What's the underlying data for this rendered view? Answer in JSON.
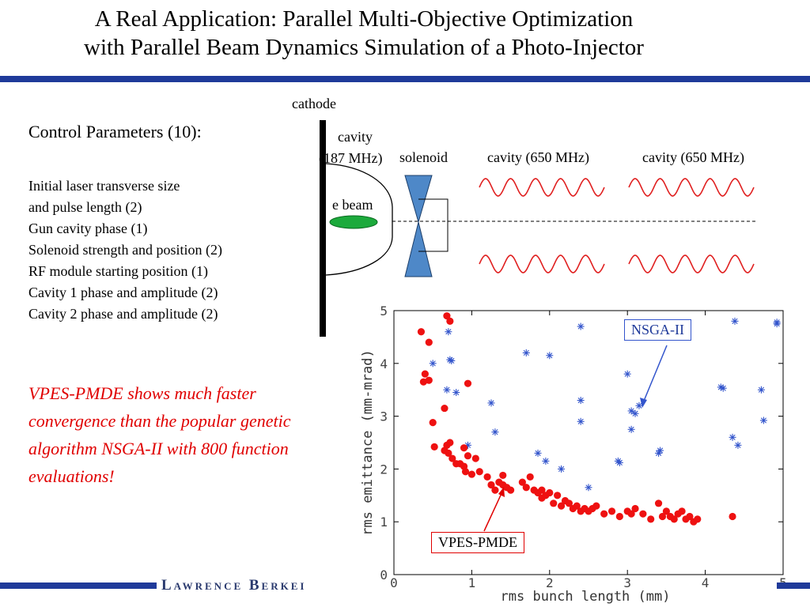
{
  "title": {
    "line1": "A Real Application: Parallel Multi-Objective Optimization",
    "line2": "with Parallel Beam Dynamics Simulation of a Photo-Injector"
  },
  "footer": {
    "logo_text": "Lawrence Berkei"
  },
  "params": {
    "heading": "Control Parameters (10):",
    "items": [
      "Initial laser transverse size",
      "and pulse length (2)",
      "Gun cavity phase (1)",
      "Solenoid strength and position (2)",
      "RF module starting position (1)",
      "Cavity 1 phase and amplitude (2)",
      "Cavity 2 phase and amplitude (2)"
    ]
  },
  "claim": "VPES-PMDE shows much faster convergence than the popular genetic algorithm NSGA-II with 800 function evaluations!",
  "diagram": {
    "cathode": "cathode",
    "cavity_gun_1": "cavity",
    "cavity_gun_2": "(187 MHz)",
    "solenoid": "solenoid",
    "cavity1": "cavity (650 MHz)",
    "cavity2": "cavity (650 MHz)",
    "ebeam": "e beam"
  },
  "colors": {
    "accent": "#1f3a9a",
    "red": "#e00000",
    "blue": "#3355cc"
  },
  "chart_data": {
    "type": "scatter",
    "xlabel": "rms bunch length (mm)",
    "ylabel": "rms emittance (mm-mrad)",
    "xlim": [
      0,
      5
    ],
    "ylim": [
      0,
      5
    ],
    "xticks": [
      0,
      1,
      2,
      3,
      4,
      5
    ],
    "yticks": [
      0,
      1,
      2,
      3,
      4,
      5
    ],
    "annotations": {
      "nsga": "NSGA-II",
      "vpes": "VPES-PMDE"
    },
    "series": [
      {
        "name": "NSGA-II",
        "marker": "asterisk",
        "color": "#3355cc",
        "points": [
          [
            0.7,
            4.6
          ],
          [
            0.5,
            4.0
          ],
          [
            0.72,
            4.07
          ],
          [
            0.74,
            4.05
          ],
          [
            0.68,
            3.5
          ],
          [
            0.8,
            3.45
          ],
          [
            0.95,
            2.45
          ],
          [
            1.25,
            3.25
          ],
          [
            1.3,
            2.7
          ],
          [
            1.7,
            4.2
          ],
          [
            2.0,
            4.15
          ],
          [
            2.4,
            4.7
          ],
          [
            1.85,
            2.3
          ],
          [
            1.95,
            2.15
          ],
          [
            2.15,
            2.0
          ],
          [
            2.4,
            3.3
          ],
          [
            2.4,
            2.9
          ],
          [
            2.5,
            1.65
          ],
          [
            2.88,
            2.15
          ],
          [
            2.9,
            2.12
          ],
          [
            3.0,
            3.8
          ],
          [
            3.05,
            2.75
          ],
          [
            3.05,
            3.1
          ],
          [
            3.1,
            3.05
          ],
          [
            3.15,
            3.2
          ],
          [
            3.4,
            2.3
          ],
          [
            3.42,
            2.35
          ],
          [
            4.2,
            3.55
          ],
          [
            4.23,
            3.53
          ],
          [
            4.35,
            2.6
          ],
          [
            4.42,
            2.45
          ],
          [
            4.38,
            4.8
          ],
          [
            4.72,
            3.5
          ],
          [
            4.75,
            2.92
          ],
          [
            4.92,
            4.75
          ],
          [
            4.92,
            4.78
          ]
        ]
      },
      {
        "name": "VPES-PMDE",
        "marker": "dot",
        "color": "#ee1111",
        "points": [
          [
            0.35,
            4.6
          ],
          [
            0.45,
            4.4
          ],
          [
            0.68,
            4.9
          ],
          [
            0.72,
            4.8
          ],
          [
            0.4,
            3.8
          ],
          [
            0.45,
            3.68
          ],
          [
            0.38,
            3.65
          ],
          [
            0.65,
            3.15
          ],
          [
            0.95,
            3.62
          ],
          [
            0.5,
            2.88
          ],
          [
            0.52,
            2.42
          ],
          [
            0.65,
            2.35
          ],
          [
            0.68,
            2.45
          ],
          [
            0.7,
            2.3
          ],
          [
            0.72,
            2.5
          ],
          [
            0.75,
            2.2
          ],
          [
            0.8,
            2.1
          ],
          [
            0.85,
            2.1
          ],
          [
            0.9,
            2.05
          ],
          [
            0.9,
            2.4
          ],
          [
            0.92,
            1.95
          ],
          [
            0.95,
            2.25
          ],
          [
            1.0,
            1.9
          ],
          [
            1.05,
            2.2
          ],
          [
            1.1,
            1.95
          ],
          [
            1.2,
            1.85
          ],
          [
            1.25,
            1.7
          ],
          [
            1.3,
            1.6
          ],
          [
            1.35,
            1.75
          ],
          [
            1.4,
            1.7
          ],
          [
            1.4,
            1.88
          ],
          [
            1.45,
            1.65
          ],
          [
            1.5,
            1.6
          ],
          [
            1.65,
            1.75
          ],
          [
            1.7,
            1.65
          ],
          [
            1.75,
            1.85
          ],
          [
            1.8,
            1.6
          ],
          [
            1.85,
            1.55
          ],
          [
            1.9,
            1.6
          ],
          [
            1.9,
            1.45
          ],
          [
            1.95,
            1.5
          ],
          [
            2.0,
            1.55
          ],
          [
            2.05,
            1.35
          ],
          [
            2.1,
            1.5
          ],
          [
            2.15,
            1.3
          ],
          [
            2.2,
            1.4
          ],
          [
            2.25,
            1.35
          ],
          [
            2.3,
            1.25
          ],
          [
            2.35,
            1.3
          ],
          [
            2.4,
            1.2
          ],
          [
            2.45,
            1.25
          ],
          [
            2.5,
            1.2
          ],
          [
            2.55,
            1.25
          ],
          [
            2.6,
            1.3
          ],
          [
            2.7,
            1.15
          ],
          [
            2.8,
            1.2
          ],
          [
            2.9,
            1.1
          ],
          [
            3.0,
            1.2
          ],
          [
            3.05,
            1.15
          ],
          [
            3.1,
            1.25
          ],
          [
            3.2,
            1.15
          ],
          [
            3.3,
            1.05
          ],
          [
            3.4,
            1.35
          ],
          [
            3.45,
            1.1
          ],
          [
            3.5,
            1.2
          ],
          [
            3.55,
            1.1
          ],
          [
            3.6,
            1.05
          ],
          [
            3.65,
            1.15
          ],
          [
            3.7,
            1.2
          ],
          [
            3.75,
            1.05
          ],
          [
            3.8,
            1.1
          ],
          [
            3.85,
            1.0
          ],
          [
            3.9,
            1.05
          ],
          [
            4.35,
            1.1
          ]
        ]
      }
    ]
  }
}
